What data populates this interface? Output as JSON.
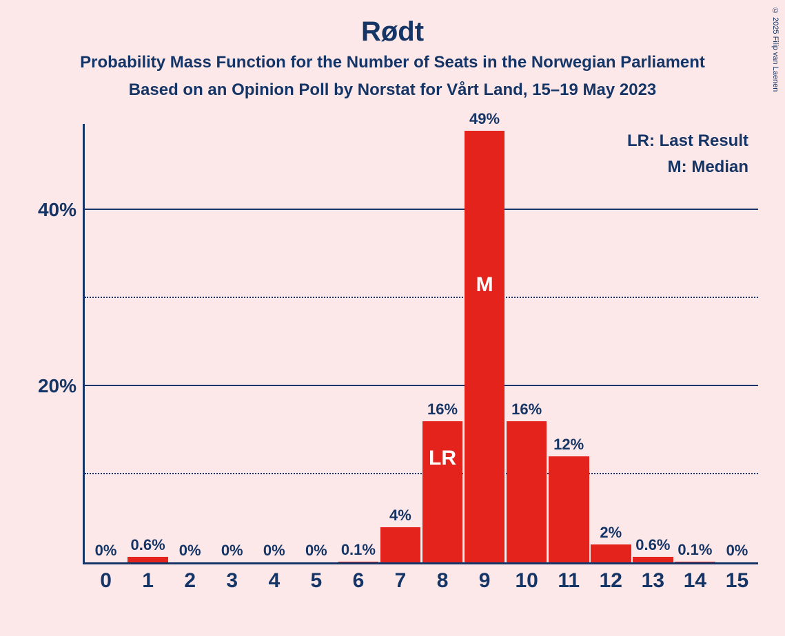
{
  "copyright": "© 2025 Filip van Laenen",
  "title": "Rødt",
  "subtitle1": "Probability Mass Function for the Number of Seats in the Norwegian Parliament",
  "subtitle2": "Based on an Opinion Poll by Norstat for Vårt Land, 15–19 May 2023",
  "legend": {
    "lr": "LR: Last Result",
    "m": "M: Median"
  },
  "chart": {
    "type": "bar",
    "background_color": "#fce8e8",
    "axis_color": "#163567",
    "bar_color": "#e5231d",
    "bar_text_color": "#ffffff",
    "text_color": "#163567",
    "ylim_max": 50,
    "y_major_ticks": [
      20,
      40
    ],
    "y_minor_ticks": [
      10,
      30
    ],
    "title_fontsize": 40,
    "subtitle_fontsize": 24,
    "label_fontsize": 22,
    "xtick_fontsize": 30,
    "ytick_fontsize": 28,
    "categories": [
      "0",
      "1",
      "2",
      "3",
      "4",
      "5",
      "6",
      "7",
      "8",
      "9",
      "10",
      "11",
      "12",
      "13",
      "14",
      "15"
    ],
    "values": [
      0,
      0.6,
      0,
      0,
      0,
      0,
      0.1,
      4,
      16,
      49,
      16,
      12,
      2,
      0.6,
      0.1,
      0
    ],
    "value_labels": [
      "0%",
      "0.6%",
      "0%",
      "0%",
      "0%",
      "0%",
      "0.1%",
      "4%",
      "16%",
      "49%",
      "16%",
      "12%",
      "2%",
      "0.6%",
      "0.1%",
      "0%"
    ],
    "markers": {
      "8": "LR",
      "9": "M"
    }
  }
}
